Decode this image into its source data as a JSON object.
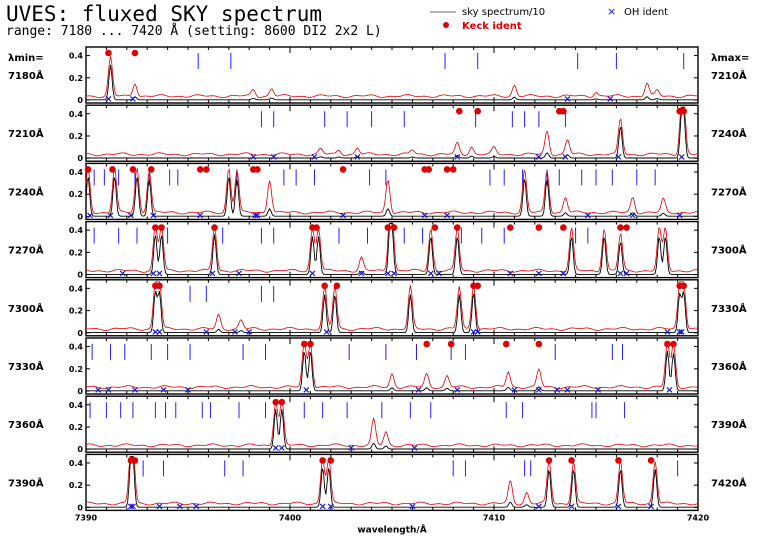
{
  "title": "UVES: fluxed SKY spectrum",
  "subtitle": "range: 7180 ... 7420 Å (setting: 8600 DI2 2x2 L)",
  "legend": {
    "sky": "sky spectrum/10",
    "oh": "OH ident",
    "keck": "Keck ident"
  },
  "lambda_min_label": "λmin=",
  "lambda_max_label": "λmax=",
  "colors": {
    "sky_scaled": "#000000",
    "sky_full": "#e00000",
    "keck": "#e00000",
    "oh": "#1010d0",
    "ticks": "#2020ff"
  },
  "chart_data": {
    "type": "line",
    "xlabel": "wavelength/Å",
    "x_tick_labels": [
      "7390",
      "7400",
      "7410",
      "7420"
    ],
    "panel_y_tick_labels": [
      "0",
      "0.2",
      "0.4"
    ],
    "ylim": [
      0,
      0.45
    ],
    "series": [
      {
        "name": "sky spectrum/10",
        "color": "#000000"
      },
      {
        "name": "",
        "color": "#e00000"
      }
    ],
    "panels": [
      {
        "lambda_min": "7180Å",
        "lambda_max": "7210Å",
        "x_range": [
          7180,
          7210
        ],
        "peaks": [
          [
            7181.2,
            0.35
          ],
          [
            7182.4,
            0.12
          ],
          [
            7188.2,
            0.06
          ],
          [
            7189.1,
            0.07
          ],
          [
            7201.0,
            0.1
          ],
          [
            7205.0,
            0.04
          ],
          [
            7207.5,
            0.12
          ],
          [
            7208.0,
            0.05
          ]
        ],
        "keck": [
          7181.1,
          7182.4
        ],
        "oh": [
          7181.1,
          7182.3,
          7203.6,
          7205.7
        ],
        "ticks": [
          7185.5,
          7187.1,
          7197.6,
          7199.2,
          7204.1,
          7206.0,
          7209.3
        ]
      },
      {
        "lambda_min": "7210Å",
        "lambda_max": "7240Å",
        "x_range": [
          7210,
          7240
        ],
        "peaks": [
          [
            7221.5,
            0.05
          ],
          [
            7222.4,
            0.04
          ],
          [
            7223.3,
            0.06
          ],
          [
            7226.0,
            0.04
          ],
          [
            7228.2,
            0.1
          ],
          [
            7228.9,
            0.07
          ],
          [
            7230.0,
            0.06
          ],
          [
            7232.6,
            0.21
          ],
          [
            7233.6,
            0.13
          ],
          [
            7236.2,
            0.32
          ],
          [
            7239.2,
            0.38
          ],
          [
            7239.3,
            0.36
          ]
        ],
        "keck": [
          7228.3,
          7229.2,
          7233.2,
          7233.4,
          7239.1,
          7239.3
        ],
        "oh": [
          7218.2,
          7219.2,
          7221.2,
          7223.3,
          7228.2,
          7232.2,
          7233.5,
          7236.1,
          7239.2
        ],
        "ticks": [
          7218.6,
          7219.2,
          7221.7,
          7222.8,
          7224.0,
          7225.6,
          7229.1,
          7230.9,
          7231.5,
          7232.2,
          7233.5
        ]
      },
      {
        "lambda_min": "7240Å",
        "lambda_max": "7270Å",
        "x_range": [
          7240,
          7270
        ],
        "peaks": [
          [
            7240.1,
            0.4
          ],
          [
            7241.4,
            0.4
          ],
          [
            7242.5,
            0.4
          ],
          [
            7243.1,
            0.38
          ],
          [
            7247.0,
            0.4
          ],
          [
            7247.4,
            0.38
          ],
          [
            7249.0,
            0.3
          ],
          [
            7254.8,
            0.3
          ],
          [
            7261.5,
            0.38
          ],
          [
            7262.6,
            0.38
          ],
          [
            7263.5,
            0.14
          ],
          [
            7266.8,
            0.14
          ],
          [
            7268.3,
            0.12
          ]
        ],
        "keck": [
          7240.1,
          7241.3,
          7242.3,
          7243.2,
          7245.6,
          7245.9,
          7248.2,
          7248.4,
          7252.6,
          7256.6,
          7256.8,
          7257.7,
          7258.0
        ],
        "oh": [
          7240.2,
          7241.2,
          7242.2,
          7243.3,
          7245.6,
          7248.3,
          7248.4,
          7252.6,
          7256.6,
          7257.7,
          7264.6,
          7266.8,
          7269.1
        ],
        "ticks": [
          7240.4,
          7240.9,
          7241.6,
          7242.4,
          7243.1,
          7244.1,
          7244.5,
          7247.4,
          7249.7,
          7250.3,
          7251.2,
          7253.9,
          7254.7,
          7259.8,
          7260.5,
          7261.4,
          7262.6,
          7263.2,
          7264.3,
          7265.0,
          7265.8,
          7267.0,
          7267.9
        ]
      },
      {
        "lambda_min": "7270Å",
        "lambda_max": "7300Å",
        "x_range": [
          7270,
          7300
        ],
        "peaks": [
          [
            7273.4,
            0.4
          ],
          [
            7273.7,
            0.4
          ],
          [
            7276.3,
            0.4
          ],
          [
            7281.1,
            0.38
          ],
          [
            7281.4,
            0.38
          ],
          [
            7283.5,
            0.12
          ],
          [
            7284.9,
            0.4
          ],
          [
            7285.0,
            0.4
          ],
          [
            7286.9,
            0.38
          ],
          [
            7288.2,
            0.38
          ],
          [
            7293.8,
            0.38
          ],
          [
            7295.4,
            0.38
          ],
          [
            7296.2,
            0.33
          ],
          [
            7298.1,
            0.38
          ],
          [
            7298.4,
            0.38
          ]
        ],
        "keck": [
          7273.4,
          7273.7,
          7276.3,
          7281.1,
          7281.3,
          7284.8,
          7285.1,
          7287.1,
          7288.2,
          7290.8,
          7292.2,
          7293.4,
          7296.2,
          7296.5
        ],
        "oh": [
          7271.8,
          7273.3,
          7273.6,
          7276.2,
          7277.5,
          7281.1,
          7283.5,
          7284.8,
          7285.1,
          7286.9,
          7287.3,
          7290.8,
          7292.2,
          7293.4,
          7296.2,
          7296.5
        ],
        "ticks": [
          7270.4,
          7271.6,
          7272.5,
          7274.0,
          7276.7,
          7278.6,
          7279.2,
          7282.4,
          7283.8,
          7285.6,
          7286.5,
          7288.4,
          7289.4,
          7290.5,
          7294.0,
          7294.6
        ]
      },
      {
        "lambda_min": "7300Å",
        "lambda_max": "7330Å",
        "x_range": [
          7300,
          7330
        ],
        "peaks": [
          [
            7303.4,
            0.4
          ],
          [
            7303.6,
            0.4
          ],
          [
            7306.5,
            0.13
          ],
          [
            7307.6,
            0.08
          ],
          [
            7311.7,
            0.38
          ],
          [
            7312.2,
            0.38
          ],
          [
            7315.9,
            0.38
          ],
          [
            7318.3,
            0.38
          ],
          [
            7319.0,
            0.4
          ],
          [
            7329.1,
            0.38
          ],
          [
            7329.3,
            0.4
          ]
        ],
        "keck": [
          7303.4,
          7303.6,
          7311.7,
          7312.3,
          7319.0,
          7319.2,
          7329.1,
          7329.3
        ],
        "oh": [
          7303.4,
          7303.6,
          7305.9,
          7307.3,
          7308.0,
          7311.8,
          7319.0,
          7319.2,
          7328.5,
          7329.1,
          7329.2
        ],
        "ticks": [
          7305.1,
          7305.9,
          7308.6,
          7309.2
        ]
      },
      {
        "lambda_min": "7330Å",
        "lambda_max": "7360Å",
        "x_range": [
          7330,
          7360
        ],
        "peaks": [
          [
            7340.7,
            0.4
          ],
          [
            7341.0,
            0.4
          ],
          [
            7345.0,
            0.12
          ],
          [
            7346.7,
            0.12
          ],
          [
            7347.7,
            0.1
          ],
          [
            7350.7,
            0.14
          ],
          [
            7352.2,
            0.16
          ],
          [
            7358.5,
            0.4
          ],
          [
            7358.8,
            0.38
          ]
        ],
        "keck": [
          7340.7,
          7341.0,
          7346.7,
          7347.9,
          7350.6,
          7352.2,
          7358.5,
          7358.8
        ],
        "oh": [
          7330.6,
          7331.1,
          7332.4,
          7333.8,
          7335.0,
          7340.8,
          7346.3,
          7348.2,
          7351.0,
          7352.2,
          7353.1,
          7353.6,
          7355.1,
          7358.6
        ],
        "ticks": [
          7330.3,
          7331.2,
          7331.9,
          7333.2,
          7334.0,
          7335.1,
          7337.7,
          7338.8,
          7342.9,
          7344.7,
          7346.2,
          7347.9,
          7348.6,
          7353.0,
          7355.8,
          7356.3
        ]
      },
      {
        "lambda_min": "7360Å",
        "lambda_max": "7390Å",
        "x_range": [
          7360,
          7390
        ],
        "peaks": [
          [
            7369.3,
            0.4
          ],
          [
            7369.6,
            0.4
          ],
          [
            7374.1,
            0.23
          ],
          [
            7374.7,
            0.12
          ]
        ],
        "keck": [
          7369.3,
          7369.6
        ],
        "oh": [
          7369.3,
          7369.6,
          7373.0,
          7376.1
        ],
        "ticks": [
          7360.2,
          7361.0,
          7361.7,
          7362.3,
          7363.4,
          7363.9,
          7364.4,
          7365.7,
          7366.1,
          7367.5,
          7368.8,
          7370.7,
          7371.6,
          7372.8,
          7374.5,
          7375.9,
          7376.9,
          7380.6,
          7381.4,
          7384.8,
          7385.0,
          7386.4
        ]
      },
      {
        "lambda_min": "7390Å",
        "lambda_max": "7420Å",
        "x_range": [
          7390,
          7420
        ],
        "peaks": [
          [
            7392.2,
            0.4
          ],
          [
            7392.3,
            0.4
          ],
          [
            7401.6,
            0.4
          ],
          [
            7401.9,
            0.4
          ],
          [
            7410.8,
            0.2
          ],
          [
            7411.6,
            0.1
          ],
          [
            7412.7,
            0.38
          ],
          [
            7413.9,
            0.38
          ],
          [
            7416.2,
            0.38
          ],
          [
            7417.9,
            0.38
          ]
        ],
        "keck": [
          7392.2,
          7392.4,
          7401.6,
          7402.0,
          7412.7,
          7413.8,
          7416.1,
          7417.7
        ],
        "oh": [
          7392.2,
          7392.3,
          7393.6,
          7394.6,
          7395.4,
          7401.6,
          7402.0,
          7406.0,
          7412.2,
          7413.8,
          7416.1,
          7417.7
        ],
        "ticks": [
          7392.8,
          7393.8,
          7396.8,
          7397.7,
          7408.0,
          7408.6,
          7411.5,
          7411.8,
          7419.0
        ]
      }
    ]
  }
}
